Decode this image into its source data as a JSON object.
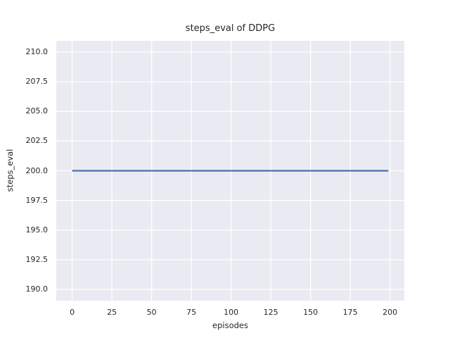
{
  "figure": {
    "background_color": "#ffffff",
    "plot_background_color": "#eaeaf2",
    "grid_color": "#ffffff",
    "text_color": "#262626"
  },
  "chart_data": {
    "type": "line",
    "title": "steps_eval of DDPG",
    "xlabel": "episodes",
    "ylabel": "steps_eval",
    "xlim": [
      -10,
      209
    ],
    "ylim": [
      189.05,
      210.95
    ],
    "x_ticks": [
      0,
      25,
      50,
      75,
      100,
      125,
      150,
      175,
      200
    ],
    "y_ticks": [
      210.0,
      207.5,
      205.0,
      202.5,
      200.0,
      197.5,
      195.0,
      192.5,
      190.0
    ],
    "y_tick_decimals": 1,
    "grid": true,
    "legend_position": "none",
    "series": [
      {
        "name": "DDPG",
        "color": "#4c72b0",
        "line_width": 2.2,
        "x": [
          0,
          199
        ],
        "y": [
          200,
          200
        ]
      }
    ]
  }
}
